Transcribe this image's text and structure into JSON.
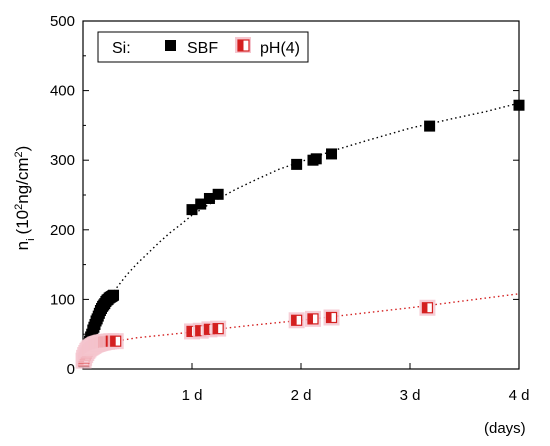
{
  "chart_data": {
    "type": "scatter",
    "ylabel_main": "n",
    "ylabel_sub": "i",
    "ylabel_paren_open": "(10",
    "ylabel_sup1": "2",
    "ylabel_mid": "ng/cm",
    "ylabel_sup2": "2",
    "ylabel_paren_close": ")",
    "xunit_label": "(days)",
    "ylim": [
      0,
      500
    ],
    "xlim": [
      0,
      4
    ],
    "y_ticks": [
      0,
      100,
      200,
      300,
      400,
      500
    ],
    "x_ticks": [
      {
        "value": 1,
        "label": "1 d"
      },
      {
        "value": 2,
        "label": "2 d"
      },
      {
        "value": 3,
        "label": "3 d"
      },
      {
        "value": 4,
        "label": "4 d"
      }
    ],
    "legend": {
      "prefix": "Si:",
      "placement": "top-left",
      "entries": [
        "SBF",
        "pH(4)"
      ]
    },
    "series": [
      {
        "name": "SBF",
        "marker": "filled-square",
        "color": "#000000",
        "fit": "dotted",
        "points": [
          [
            0.01,
            10
          ],
          [
            0.02,
            18
          ],
          [
            0.03,
            25
          ],
          [
            0.04,
            30
          ],
          [
            0.05,
            36
          ],
          [
            0.06,
            40
          ],
          [
            0.07,
            46
          ],
          [
            0.08,
            50
          ],
          [
            0.09,
            56
          ],
          [
            0.1,
            60
          ],
          [
            0.11,
            64
          ],
          [
            0.12,
            69
          ],
          [
            0.13,
            72
          ],
          [
            0.14,
            76
          ],
          [
            0.15,
            80
          ],
          [
            0.16,
            84
          ],
          [
            0.17,
            87
          ],
          [
            0.18,
            90
          ],
          [
            0.19,
            92
          ],
          [
            0.2,
            94
          ],
          [
            0.21,
            97
          ],
          [
            0.22,
            99
          ],
          [
            0.23,
            100
          ],
          [
            0.24,
            102
          ],
          [
            0.25,
            103
          ],
          [
            0.26,
            104
          ],
          [
            0.27,
            105
          ],
          [
            0.28,
            106
          ],
          [
            1.0,
            229
          ],
          [
            1.08,
            237
          ],
          [
            1.16,
            245
          ],
          [
            1.24,
            251
          ],
          [
            1.96,
            294
          ],
          [
            2.11,
            300
          ],
          [
            2.14,
            302
          ],
          [
            2.28,
            309
          ],
          [
            3.18,
            349
          ],
          [
            4.0,
            379
          ]
        ]
      },
      {
        "name": "pH(4)",
        "marker": "half-filled-square",
        "color": "#d42020",
        "fit": "dotted",
        "points": [
          [
            0.005,
            12
          ],
          [
            0.01,
            16
          ],
          [
            0.02,
            20
          ],
          [
            0.03,
            23
          ],
          [
            0.04,
            26
          ],
          [
            0.05,
            28
          ],
          [
            0.06,
            30
          ],
          [
            0.07,
            31
          ],
          [
            0.08,
            32
          ],
          [
            0.09,
            33
          ],
          [
            0.1,
            34
          ],
          [
            0.11,
            35
          ],
          [
            0.12,
            35.5
          ],
          [
            0.13,
            36
          ],
          [
            0.14,
            36.5
          ],
          [
            0.15,
            37
          ],
          [
            0.16,
            37.5
          ],
          [
            0.17,
            38
          ],
          [
            0.18,
            38
          ],
          [
            0.19,
            38.5
          ],
          [
            0.2,
            39
          ],
          [
            0.22,
            39
          ],
          [
            0.24,
            39.5
          ],
          [
            0.26,
            40
          ],
          [
            0.3,
            40
          ],
          [
            1.0,
            54
          ],
          [
            1.08,
            55
          ],
          [
            1.16,
            57
          ],
          [
            1.24,
            58
          ],
          [
            1.96,
            70
          ],
          [
            2.11,
            72
          ],
          [
            2.28,
            74
          ],
          [
            3.16,
            88
          ]
        ]
      }
    ],
    "fits": {
      "SBF": [
        [
          0.02,
          18
        ],
        [
          0.05,
          35
        ],
        [
          0.1,
          60
        ],
        [
          0.15,
          80
        ],
        [
          0.2,
          95
        ],
        [
          0.3,
          115
        ],
        [
          0.4,
          135
        ],
        [
          0.5,
          152
        ],
        [
          0.6,
          167
        ],
        [
          0.7,
          182
        ],
        [
          0.8,
          196
        ],
        [
          0.9,
          208
        ],
        [
          1.0,
          221
        ],
        [
          1.2,
          241
        ],
        [
          1.4,
          258
        ],
        [
          1.6,
          273
        ],
        [
          1.8,
          287
        ],
        [
          2.0,
          298
        ],
        [
          2.3,
          314
        ],
        [
          2.6,
          328
        ],
        [
          3.0,
          346
        ],
        [
          3.4,
          360
        ],
        [
          3.7,
          370
        ],
        [
          4.0,
          382
        ]
      ],
      "pH(4)": [
        [
          0.0,
          30
        ],
        [
          0.05,
          33
        ],
        [
          0.1,
          36
        ],
        [
          0.2,
          38
        ],
        [
          0.3,
          40
        ],
        [
          0.5,
          45
        ],
        [
          1.0,
          53
        ],
        [
          1.5,
          62
        ],
        [
          2.0,
          70
        ],
        [
          2.5,
          79
        ],
        [
          3.0,
          88
        ],
        [
          3.5,
          98
        ],
        [
          4.0,
          108
        ]
      ]
    },
    "grid": false
  }
}
